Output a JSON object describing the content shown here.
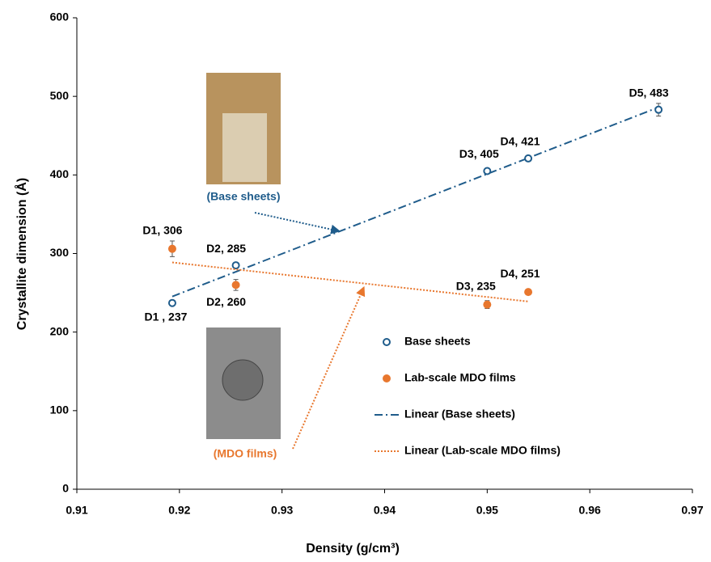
{
  "chart_data": {
    "type": "scatter",
    "xlabel": "Density (g/cm³)",
    "ylabel": "Crystallite dimension (Å)",
    "xlim": [
      0.91,
      0.97
    ],
    "xticks": [
      0.91,
      0.92,
      0.93,
      0.94,
      0.95,
      0.96,
      0.97
    ],
    "ylim": [
      0,
      600
    ],
    "yticks": [
      0,
      100,
      200,
      300,
      400,
      500,
      600
    ],
    "series": [
      {
        "name": "Base sheets",
        "color": "#1f5c8b",
        "marker": "open-circle",
        "x": [
          0.9193,
          0.9255,
          0.95,
          0.954,
          0.9667
        ],
        "values": [
          237,
          285,
          405,
          421,
          483
        ],
        "errors": [
          3,
          3,
          3,
          3,
          8
        ],
        "value_labels": [
          "D1 , 237",
          "D2, 285",
          "D3, 405",
          "D4, 421",
          "D5, 483"
        ],
        "trendline": {
          "name": "Linear (Base sheets)",
          "style": "dashdot"
        }
      },
      {
        "name": "Lab-scale MDO films",
        "color": "#e8772e",
        "marker": "filled-circle",
        "x": [
          0.9193,
          0.9255,
          0.95,
          0.954
        ],
        "values": [
          306,
          260,
          235,
          251
        ],
        "errors": [
          10,
          7,
          5,
          3
        ],
        "value_labels": [
          "D1, 306",
          "D2, 260",
          "D3, 235",
          "D4, 251"
        ],
        "trendline": {
          "name": "Linear (Lab-scale MDO films)",
          "style": "dotted"
        }
      }
    ],
    "annotations": [
      "(Base sheets)",
      "(MDO films)"
    ]
  }
}
